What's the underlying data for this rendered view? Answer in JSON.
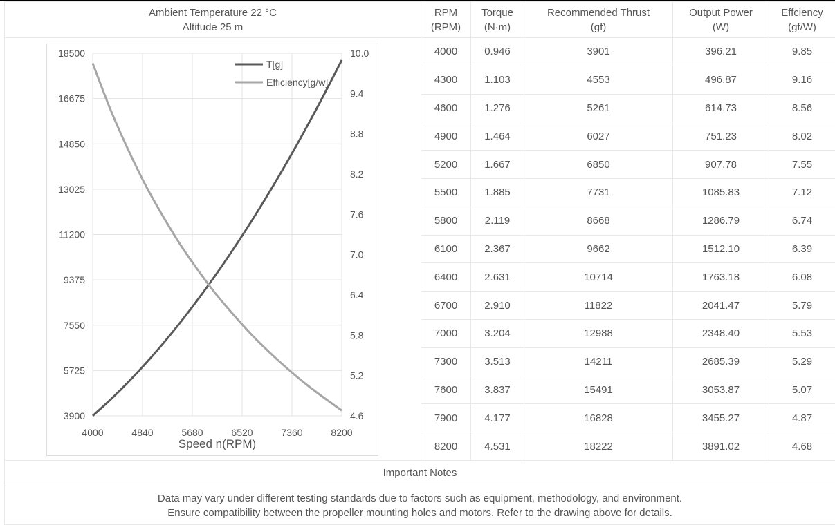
{
  "conditions": {
    "ambient": "Ambient Temperature  22 °C",
    "altitude": "Altitude  25 m"
  },
  "headers": [
    {
      "l1": "RPM",
      "l2": "(RPM)"
    },
    {
      "l1": "Torque",
      "l2": "(N·m)"
    },
    {
      "l1": "Recommended Thrust",
      "l2": "(gf)"
    },
    {
      "l1": "Output Power",
      "l2": "(W)"
    },
    {
      "l1": "Effciency",
      "l2": "(gf/W)"
    }
  ],
  "rows": [
    [
      "4000",
      "0.946",
      "3901",
      "396.21",
      "9.85"
    ],
    [
      "4300",
      "1.103",
      "4553",
      "496.87",
      "9.16"
    ],
    [
      "4600",
      "1.276",
      "5261",
      "614.73",
      "8.56"
    ],
    [
      "4900",
      "1.464",
      "6027",
      "751.23",
      "8.02"
    ],
    [
      "5200",
      "1.667",
      "6850",
      "907.78",
      "7.55"
    ],
    [
      "5500",
      "1.885",
      "7731",
      "1085.83",
      "7.12"
    ],
    [
      "5800",
      "2.119",
      "8668",
      "1286.79",
      "6.74"
    ],
    [
      "6100",
      "2.367",
      "9662",
      "1512.10",
      "6.39"
    ],
    [
      "6400",
      "2.631",
      "10714",
      "1763.18",
      "6.08"
    ],
    [
      "6700",
      "2.910",
      "11822",
      "2041.47",
      "5.79"
    ],
    [
      "7000",
      "3.204",
      "12988",
      "2348.40",
      "5.53"
    ],
    [
      "7300",
      "3.513",
      "14211",
      "2685.39",
      "5.29"
    ],
    [
      "7600",
      "3.837",
      "15491",
      "3053.87",
      "5.07"
    ],
    [
      "7900",
      "4.177",
      "16828",
      "3455.27",
      "4.87"
    ],
    [
      "8200",
      "4.531",
      "18222",
      "3891.02",
      "4.68"
    ]
  ],
  "notes": {
    "title": "Important Notes",
    "line1": "Data may vary under different testing standards due to factors such as equipment, methodology, and environment.",
    "line2": "Ensure compatibility between the propeller mounting holes and motors. Refer to the drawing above for details."
  },
  "chart_data": {
    "type": "line",
    "xlabel": "Speed n(RPM)",
    "x": [
      4000,
      4300,
      4600,
      4900,
      5200,
      5500,
      5800,
      6100,
      6400,
      6700,
      7000,
      7300,
      7600,
      7900,
      8200
    ],
    "xticks": [
      "4000",
      "4840",
      "5680",
      "6520",
      "7360",
      "8200"
    ],
    "xlim": [
      4000,
      8200
    ],
    "yleft": {
      "ticks": [
        "18500",
        "16675",
        "14850",
        "13025",
        "11200",
        "9375",
        "7550",
        "5725",
        "3900"
      ],
      "lim": [
        3900,
        18500
      ]
    },
    "yright": {
      "ticks": [
        "10.0",
        "9.4",
        "8.8",
        "8.2",
        "7.6",
        "7.0",
        "6.4",
        "5.8",
        "5.2",
        "4.6"
      ],
      "lim": [
        4.6,
        10.0
      ]
    },
    "legend": "top-right",
    "grid": true,
    "series": [
      {
        "name": "T[g]",
        "axis": "left",
        "color": "#595959",
        "values": [
          3901,
          4553,
          5261,
          6027,
          6850,
          7731,
          8668,
          9662,
          10714,
          11822,
          12988,
          14211,
          15491,
          16828,
          18222
        ]
      },
      {
        "name": "Efficiency[g/w]",
        "axis": "right",
        "color": "#a6a6a6",
        "values": [
          9.85,
          9.16,
          8.56,
          8.02,
          7.55,
          7.12,
          6.74,
          6.39,
          6.08,
          5.79,
          5.53,
          5.29,
          5.07,
          4.87,
          4.68
        ]
      }
    ]
  }
}
